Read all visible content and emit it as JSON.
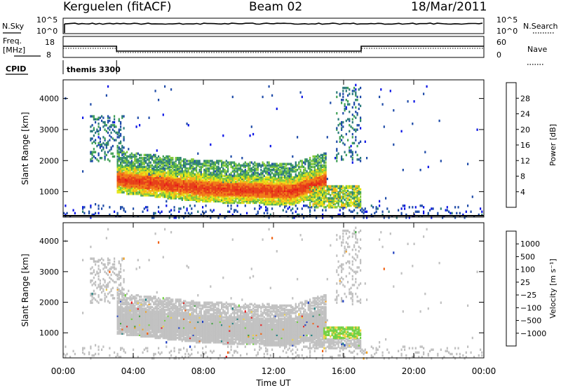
{
  "header": {
    "station": "Kerguelen (fitACF)",
    "beam": "Beam 02",
    "date": "18/Mar/2011"
  },
  "top_panels": {
    "nsky_label": "N.Sky",
    "nsky_ticks": [
      "10^5",
      "10^0"
    ],
    "nsearch_label": "N.Search",
    "nsearch_ticks": [
      "10^5",
      "10^0"
    ],
    "freq_label_1": "Freq.",
    "freq_label_2": "[MHz]",
    "freq_ticks": [
      "18",
      "8"
    ],
    "nave_label": "Nave",
    "nave_ticks": [
      "60",
      "0"
    ],
    "cpid_label": "CPID",
    "cpid_value": "themis 3300"
  },
  "chart_data": [
    {
      "type": "heatmap",
      "name": "power",
      "xlabel": "Time UT",
      "ylabel": "Slant Range [km]",
      "xlim": [
        "00:00",
        "00:00"
      ],
      "x_ticks": [
        "00:00",
        "04:00",
        "08:00",
        "12:00",
        "16:00",
        "20:00",
        "00:00"
      ],
      "ylim": [
        180,
        4600
      ],
      "y_ticks": [
        1000,
        2000,
        3000,
        4000
      ],
      "colorbar": {
        "label": "Power [dB]",
        "ticks": [
          4,
          8,
          12,
          16,
          20,
          24,
          28
        ],
        "range": [
          0,
          32
        ],
        "colors": [
          "#0a14e6",
          "#1e4ba8",
          "#2a7a7a",
          "#3fa055",
          "#80c838",
          "#e6e614",
          "#f5b414",
          "#f07814",
          "#e63c14",
          "#e61414"
        ]
      },
      "features": [
        {
          "description": "main band",
          "t_start_h": 3.0,
          "t_end_h": 14.8,
          "range_low_km": 900,
          "range_high_km": 1700,
          "peak_db": 28
        },
        {
          "description": "upper diffuse band",
          "t_start_h": 3.0,
          "t_end_h": 15.5,
          "range_low_km": 1700,
          "range_high_km": 2300,
          "peak_db": 14
        },
        {
          "description": "afternoon low-range echoes",
          "t_start_h": 14.0,
          "t_end_h": 17.0,
          "range_low_km": 500,
          "range_high_km": 1200,
          "peak_db": 18
        }
      ]
    },
    {
      "type": "heatmap",
      "name": "velocity",
      "xlabel": "Time UT",
      "ylabel": "Slant Range [km]",
      "xlim": [
        "00:00",
        "00:00"
      ],
      "x_ticks": [
        "00:00",
        "04:00",
        "08:00",
        "12:00",
        "16:00",
        "20:00",
        "00:00"
      ],
      "ylim": [
        180,
        4600
      ],
      "y_ticks": [
        1000,
        2000,
        3000,
        4000
      ],
      "colorbar": {
        "label": "Velocity [m s⁻¹]",
        "ticks": [
          "1000",
          "500",
          "100",
          "25",
          "−25",
          "−100",
          "−500",
          "−1000"
        ],
        "colors": [
          "#2040c0",
          "#208080",
          "#40a040",
          "#70d040",
          "#c0c0c0",
          "#f0d040",
          "#f0a020",
          "#f06010",
          "#e62020"
        ]
      },
      "features": [
        {
          "description": "ground scatter (grey)",
          "t_start_h": 3.0,
          "t_end_h": 15.5,
          "range_low_km": 900,
          "range_high_km": 2300,
          "velocity": "−25 to 25"
        },
        {
          "description": "positive velocity patch (green)",
          "t_start_h": 14.8,
          "t_end_h": 17.0,
          "range_low_km": 850,
          "range_high_km": 1250,
          "velocity": "25 to 100"
        }
      ]
    }
  ]
}
